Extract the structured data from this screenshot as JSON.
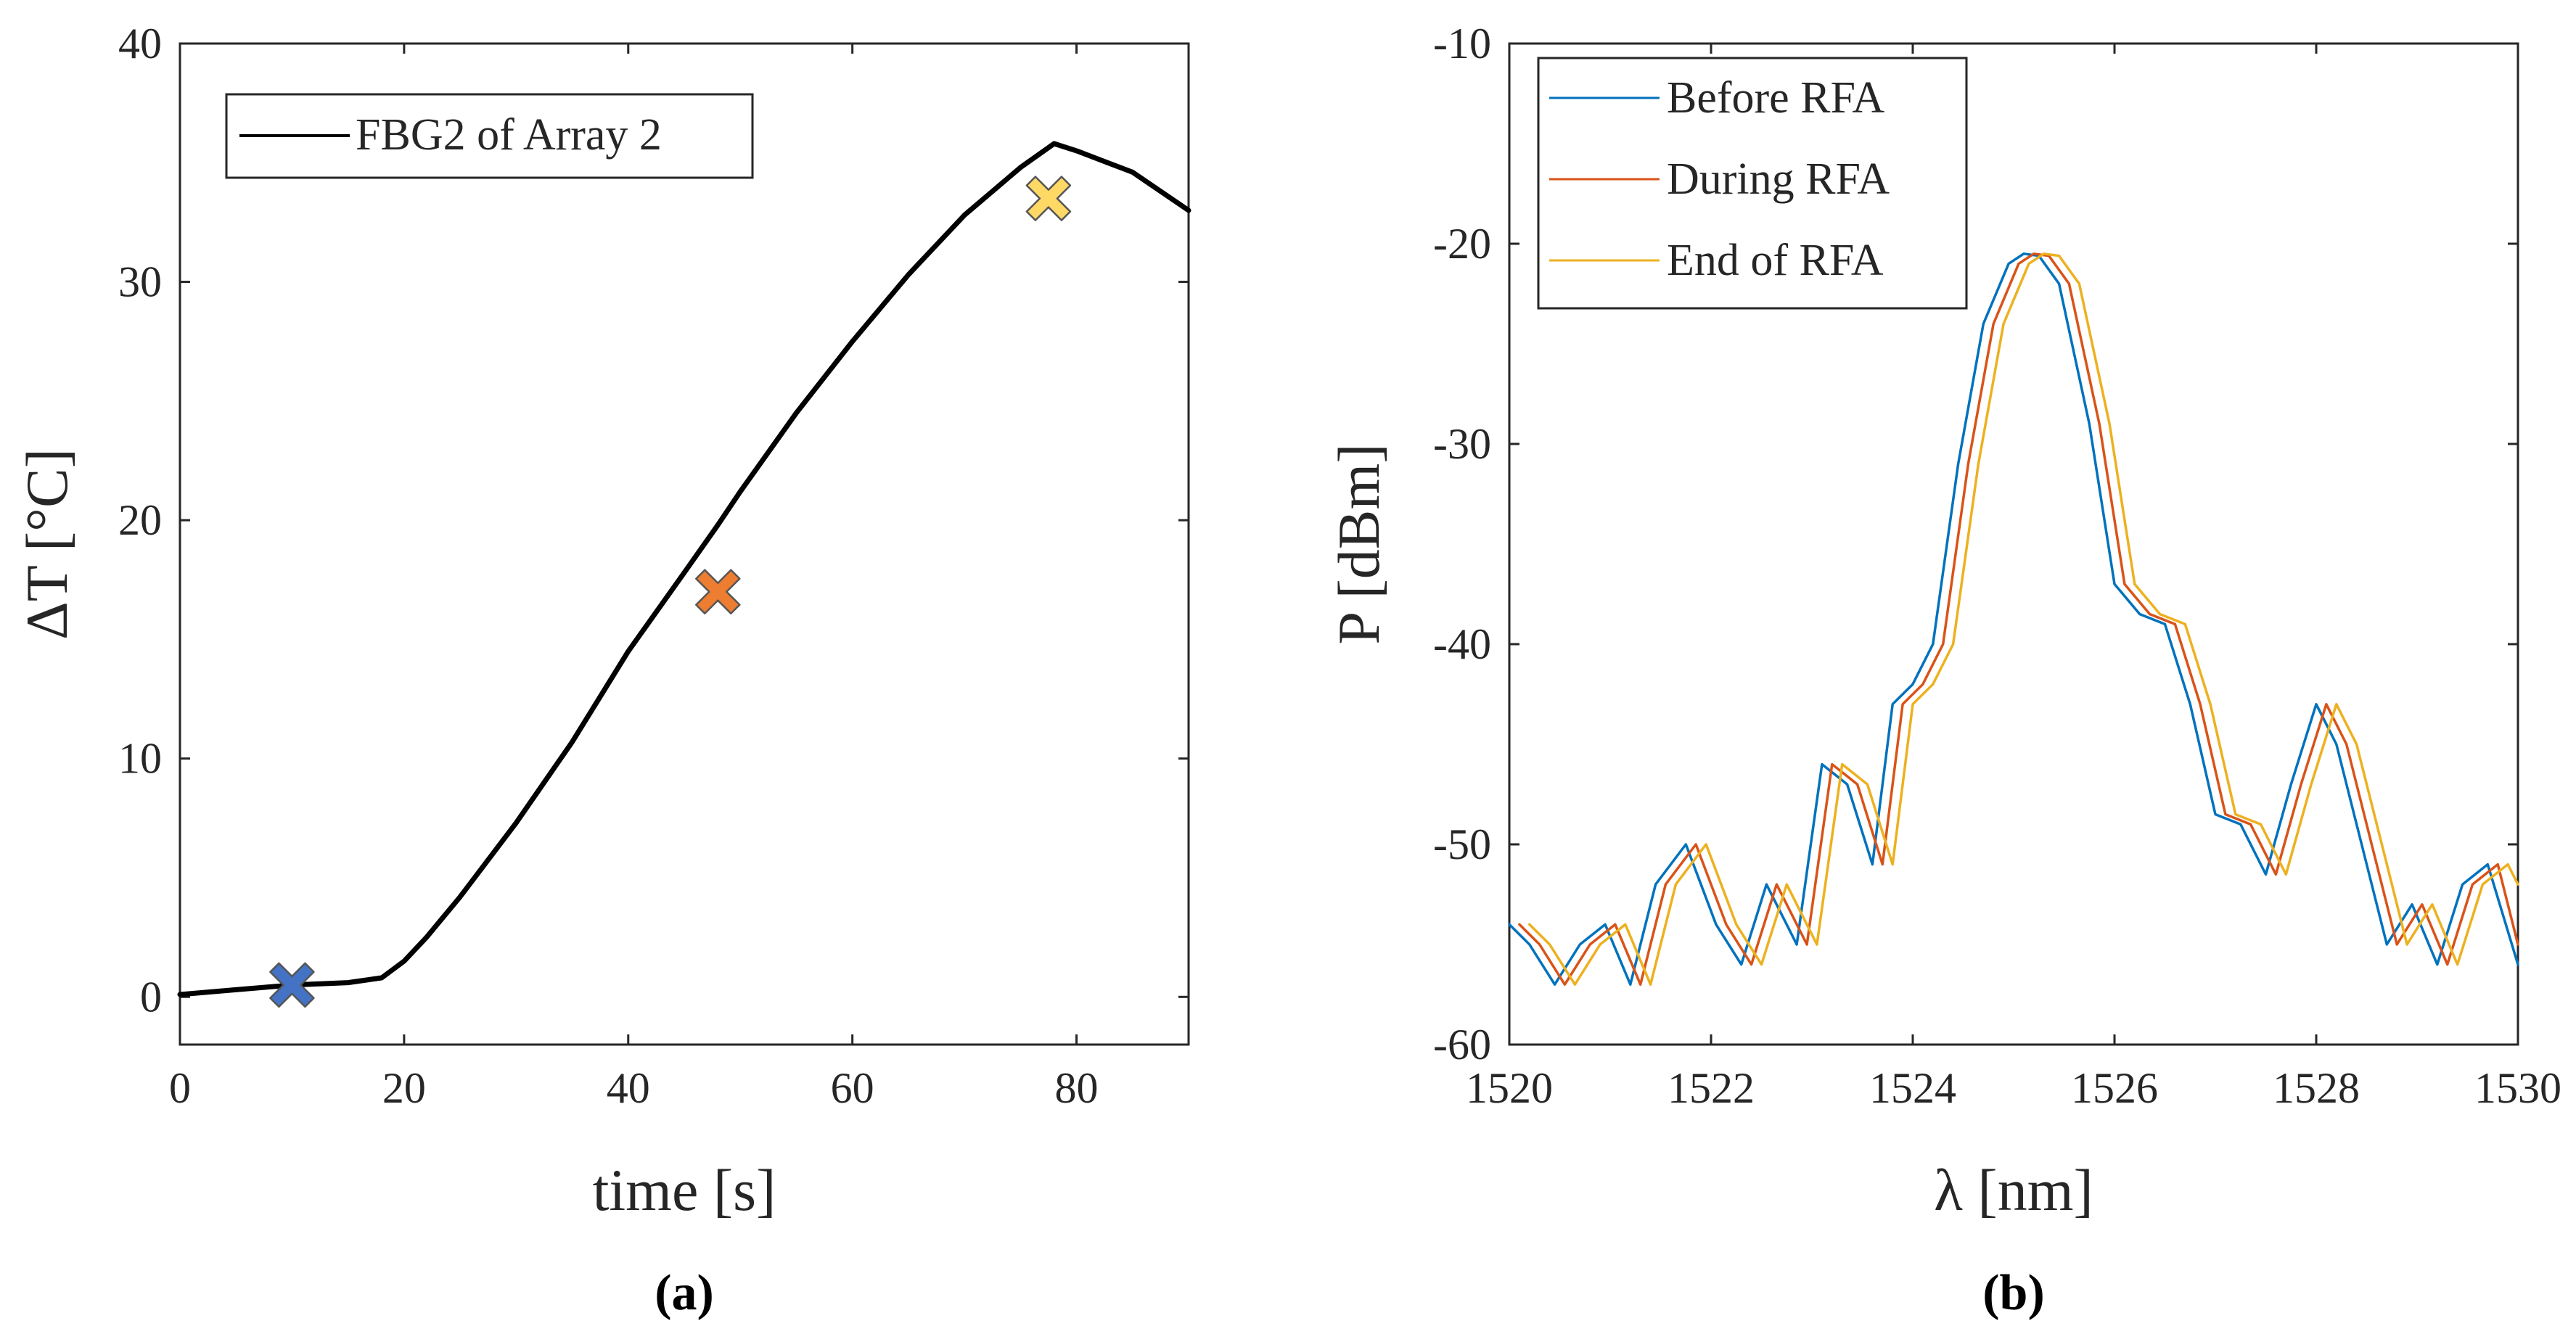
{
  "chart_data": [
    {
      "type": "line",
      "caption": "(a)",
      "xlabel": "time [s]",
      "ylabel": "ΔT [°C]",
      "xlim": [
        0,
        90
      ],
      "ylim": [
        -2,
        40
      ],
      "xticks": [
        0,
        20,
        40,
        60,
        80
      ],
      "yticks": [
        0,
        10,
        20,
        30,
        40
      ],
      "legend_location": "top-left",
      "series": [
        {
          "name": "FBG2 of Array 2",
          "color": "#000000",
          "x": [
            0,
            5,
            10,
            15,
            18,
            20,
            22,
            25,
            30,
            35,
            40,
            45,
            48,
            50,
            55,
            60,
            65,
            70,
            75,
            78,
            80,
            85,
            90
          ],
          "y": [
            0.1,
            0.3,
            0.5,
            0.6,
            0.8,
            1.5,
            2.5,
            4.2,
            7.3,
            10.7,
            14.5,
            17.8,
            19.8,
            21.2,
            24.5,
            27.5,
            30.3,
            32.8,
            34.8,
            35.8,
            35.5,
            34.6,
            33.0
          ]
        }
      ],
      "markers": [
        {
          "x": 10,
          "y": 0.5,
          "color": "#4472c4",
          "symbol": "x"
        },
        {
          "x": 48,
          "y": 17,
          "color": "#ed7d31",
          "symbol": "x"
        },
        {
          "x": 77.5,
          "y": 33.5,
          "color": "#ffd966",
          "symbol": "x"
        }
      ]
    },
    {
      "type": "line",
      "caption": "(b)",
      "xlabel": "λ [nm]",
      "ylabel": "P [dBm]",
      "xlim": [
        1520,
        1530
      ],
      "ylim": [
        -60,
        -10
      ],
      "xticks": [
        1520,
        1522,
        1524,
        1526,
        1528,
        1530
      ],
      "yticks": [
        -60,
        -50,
        -40,
        -30,
        -20,
        -10
      ],
      "legend_location": "top-left",
      "series": [
        {
          "name": "Before RFA",
          "color": "#0072bd",
          "x": [
            1520.0,
            1520.2,
            1520.45,
            1520.7,
            1520.95,
            1521.2,
            1521.45,
            1521.75,
            1522.05,
            1522.3,
            1522.55,
            1522.85,
            1523.1,
            1523.35,
            1523.6,
            1523.8,
            1524.0,
            1524.2,
            1524.45,
            1524.7,
            1524.95,
            1525.1,
            1525.25,
            1525.45,
            1525.75,
            1526.0,
            1526.25,
            1526.5,
            1526.75,
            1527.0,
            1527.25,
            1527.5,
            1527.75,
            1528.0,
            1528.2,
            1528.45,
            1528.7,
            1528.95,
            1529.2,
            1529.45,
            1529.7,
            1530.0
          ],
          "y": [
            -54,
            -55,
            -57,
            -55,
            -54,
            -57,
            -52,
            -50,
            -54,
            -56,
            -52,
            -55,
            -46,
            -47,
            -51,
            -43,
            -42,
            -40,
            -31,
            -24,
            -21,
            -20.5,
            -20.6,
            -22,
            -29,
            -37,
            -38.5,
            -39,
            -43,
            -48.5,
            -49,
            -51.5,
            -47,
            -43,
            -45,
            -50,
            -55,
            -53,
            -56,
            -52,
            -51,
            -56
          ]
        },
        {
          "name": "During RFA",
          "color": "#d95319",
          "x": [
            1520.1,
            1520.3,
            1520.55,
            1520.8,
            1521.05,
            1521.3,
            1521.55,
            1521.85,
            1522.15,
            1522.4,
            1522.65,
            1522.95,
            1523.2,
            1523.45,
            1523.7,
            1523.9,
            1524.1,
            1524.3,
            1524.55,
            1524.8,
            1525.05,
            1525.2,
            1525.35,
            1525.55,
            1525.85,
            1526.1,
            1526.35,
            1526.6,
            1526.85,
            1527.1,
            1527.35,
            1527.6,
            1527.85,
            1528.1,
            1528.3,
            1528.55,
            1528.8,
            1529.05,
            1529.3,
            1529.55,
            1529.8,
            1530.0
          ],
          "y": [
            -54,
            -55,
            -57,
            -55,
            -54,
            -57,
            -52,
            -50,
            -54,
            -56,
            -52,
            -55,
            -46,
            -47,
            -51,
            -43,
            -42,
            -40,
            -31,
            -24,
            -21,
            -20.5,
            -20.6,
            -22,
            -29,
            -37,
            -38.5,
            -39,
            -43,
            -48.5,
            -49,
            -51.5,
            -47,
            -43,
            -45,
            -50,
            -55,
            -53,
            -56,
            -52,
            -51,
            -55
          ]
        },
        {
          "name": "End of RFA",
          "color": "#edb120",
          "x": [
            1520.2,
            1520.4,
            1520.65,
            1520.9,
            1521.15,
            1521.4,
            1521.65,
            1521.95,
            1522.25,
            1522.5,
            1522.75,
            1523.05,
            1523.3,
            1523.55,
            1523.8,
            1524.0,
            1524.2,
            1524.4,
            1524.65,
            1524.9,
            1525.15,
            1525.3,
            1525.45,
            1525.65,
            1525.95,
            1526.2,
            1526.45,
            1526.7,
            1526.95,
            1527.2,
            1527.45,
            1527.7,
            1527.95,
            1528.2,
            1528.4,
            1528.65,
            1528.9,
            1529.15,
            1529.4,
            1529.65,
            1529.9,
            1530.0
          ],
          "y": [
            -54,
            -55,
            -57,
            -55,
            -54,
            -57,
            -52,
            -50,
            -54,
            -56,
            -52,
            -55,
            -46,
            -47,
            -51,
            -43,
            -42,
            -40,
            -31,
            -24,
            -21,
            -20.5,
            -20.6,
            -22,
            -29,
            -37,
            -38.5,
            -39,
            -43,
            -48.5,
            -49,
            -51.5,
            -47,
            -43,
            -45,
            -50,
            -55,
            -53,
            -56,
            -52,
            -51,
            -52
          ]
        }
      ]
    }
  ]
}
